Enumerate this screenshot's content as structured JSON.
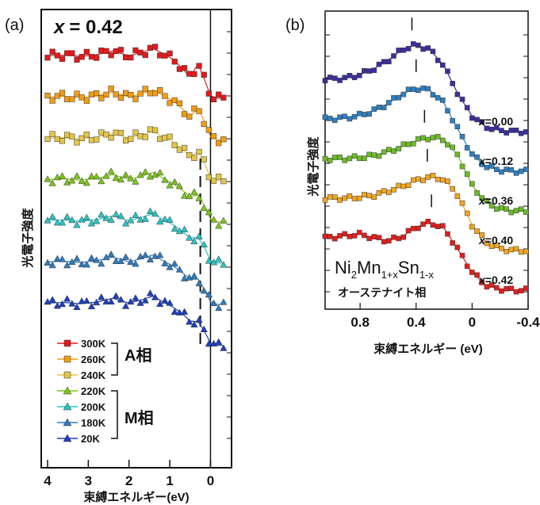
{
  "colors": {
    "300K": "#e31a1c",
    "260K": "#f39c12",
    "240K": "#e3c64a",
    "220K": "#7cc519",
    "200K": "#2bc3c3",
    "180K": "#2f7bbf",
    "20K": "#1f3fbf",
    "x000": "#3c2f9c",
    "x012": "#2f7fc0",
    "x036": "#6dbb2a",
    "x040": "#f0a622",
    "x042": "#e01f1f"
  },
  "panel_a": {
    "label": "(a)",
    "x_header_var": "x",
    "x_header_val": "= 0.42",
    "xlabel": "束縛エネルギー(eV)",
    "ylabel": "光電子強度",
    "xticks": [
      "4",
      "3",
      "2",
      "1",
      "0"
    ],
    "group_a": "A相",
    "group_m": "M相",
    "legend": [
      "300K",
      "260K",
      "240K",
      "220K",
      "200K",
      "180K",
      "20K"
    ]
  },
  "panel_b": {
    "label": "(b)",
    "xlabel": "束縛エネルギー (eV)",
    "ylabel": "光電子強度",
    "xticks": [
      "0.8",
      "0.4",
      "0",
      "-0.4"
    ],
    "formula": {
      "p1": "Ni",
      "s1": "2",
      "p2": "Mn",
      "s2": "1+x",
      "p3": "Sn",
      "s3": "1-x"
    },
    "subtitle": "オーステナイト相",
    "series_var": "x",
    "series_labels": [
      "=0.00",
      "=0.12",
      "=0.36",
      "=0.40",
      "=0.42"
    ]
  },
  "chart_data": [
    {
      "type": "line",
      "title": "x = 0.42",
      "xlabel": "束縛エネルギー(eV)",
      "ylabel": "光電子強度",
      "xlim": [
        4.0,
        -0.4
      ],
      "x_reversed": true,
      "x_tick_values": [
        4,
        3,
        2,
        1,
        0
      ],
      "marker_line_ev": 0.25,
      "x": [
        4.0,
        3.6,
        3.2,
        2.8,
        2.4,
        2.0,
        1.7,
        1.4,
        1.2,
        0.9,
        0.65,
        0.5,
        0.3,
        0.15,
        0.0,
        -0.15,
        -0.3
      ],
      "series": [
        {
          "name": "300K",
          "color": "#e31a1c",
          "marker": "square",
          "offset": 6,
          "values": [
            0.14,
            0.16,
            0.12,
            0.17,
            0.29,
            0.14,
            0.24,
            0.36,
            0.23,
            0.02,
            -0.32,
            -0.5,
            -0.12,
            -0.6,
            -1.1,
            -1.18,
            -1.18
          ]
        },
        {
          "name": "260K",
          "color": "#f39c12",
          "marker": "square",
          "offset": 5,
          "values": [
            0.14,
            0.16,
            0.12,
            0.17,
            0.29,
            0.14,
            0.24,
            0.36,
            0.21,
            0.01,
            -0.28,
            -0.46,
            -0.22,
            -0.62,
            -1.1,
            -1.18,
            -1.18
          ]
        },
        {
          "name": "240K",
          "color": "#e3c64a",
          "marker": "square",
          "offset": 4,
          "values": [
            0.14,
            0.16,
            0.12,
            0.17,
            0.29,
            0.14,
            0.24,
            0.36,
            0.2,
            0.01,
            -0.26,
            -0.43,
            -0.28,
            -0.64,
            -1.1,
            -1.18,
            -1.18
          ]
        },
        {
          "name": "220K",
          "color": "#7cc519",
          "marker": "triangle",
          "offset": 3,
          "values": [
            0.14,
            0.16,
            0.12,
            0.17,
            0.29,
            0.14,
            0.24,
            0.36,
            0.2,
            0.0,
            -0.24,
            -0.4,
            -0.34,
            -0.68,
            -1.1,
            -1.18,
            -1.18
          ]
        },
        {
          "name": "200K",
          "color": "#2bc3c3",
          "marker": "triangle",
          "offset": 2,
          "values": [
            0.14,
            0.16,
            0.12,
            0.17,
            0.29,
            0.14,
            0.24,
            0.36,
            0.2,
            0.0,
            -0.24,
            -0.4,
            -0.38,
            -0.7,
            -1.1,
            -1.18,
            -1.18
          ]
        },
        {
          "name": "180K",
          "color": "#2f7bbf",
          "marker": "triangle",
          "offset": 1,
          "values": [
            0.14,
            0.16,
            0.12,
            0.17,
            0.29,
            0.14,
            0.24,
            0.36,
            0.2,
            0.0,
            -0.24,
            -0.4,
            -0.4,
            -0.72,
            -1.1,
            -1.18,
            -1.18
          ]
        },
        {
          "name": "20K",
          "color": "#1f3fbf",
          "marker": "triangle",
          "offset": 0,
          "values": [
            0.14,
            0.16,
            0.12,
            0.17,
            0.29,
            0.14,
            0.24,
            0.36,
            0.2,
            0.0,
            -0.24,
            -0.42,
            -0.44,
            -0.74,
            -1.1,
            -1.18,
            -1.18
          ]
        }
      ],
      "legend_groups": [
        {
          "label": "A相",
          "members": [
            "300K",
            "260K",
            "240K"
          ]
        },
        {
          "label": "M相",
          "members": [
            "220K",
            "200K",
            "180K",
            "20K"
          ]
        }
      ],
      "legend_placement": "bottom-left"
    },
    {
      "type": "line",
      "xlabel": "束縛エネルギー (eV)",
      "ylabel": "光電子強度",
      "xlim": [
        1.05,
        -0.4
      ],
      "x_reversed": true,
      "x_tick_values": [
        0.8,
        0.4,
        0,
        -0.4
      ],
      "x": [
        1.05,
        0.9,
        0.8,
        0.7,
        0.6,
        0.5,
        0.4,
        0.3,
        0.2,
        0.1,
        0.0,
        -0.1,
        -0.2,
        -0.3,
        -0.4
      ],
      "series": [
        {
          "name": "x=0.00",
          "color": "#3c2f9c",
          "marker": "square",
          "offset": 4,
          "values": [
            0.0,
            0.02,
            0.08,
            0.18,
            0.32,
            0.5,
            0.58,
            0.5,
            0.22,
            -0.25,
            -0.62,
            -0.8,
            -0.86,
            -0.88,
            -0.88
          ],
          "tick_ev": 0.43
        },
        {
          "name": "x=0.12",
          "color": "#2f7fc0",
          "marker": "square",
          "offset": 3,
          "values": [
            0.0,
            0.02,
            0.06,
            0.14,
            0.26,
            0.42,
            0.52,
            0.48,
            0.26,
            -0.18,
            -0.6,
            -0.8,
            -0.86,
            -0.88,
            -0.88
          ],
          "tick_ev": 0.4
        },
        {
          "name": "x=0.36",
          "color": "#6dbb2a",
          "marker": "square",
          "offset": 2,
          "values": [
            0.0,
            0.0,
            0.02,
            0.05,
            0.12,
            0.2,
            0.3,
            0.36,
            0.32,
            0.05,
            -0.45,
            -0.74,
            -0.85,
            -0.88,
            -0.88
          ],
          "tick_ev": 0.34
        },
        {
          "name": "x=0.40",
          "color": "#f0a622",
          "marker": "square",
          "offset": 1,
          "values": [
            0.0,
            0.0,
            0.02,
            0.05,
            0.12,
            0.2,
            0.3,
            0.36,
            0.32,
            0.05,
            -0.45,
            -0.74,
            -0.85,
            -0.88,
            -0.88
          ],
          "tick_ev": 0.32
        },
        {
          "name": "x=0.42",
          "color": "#e01f1f",
          "marker": "square",
          "offset": 0,
          "values": [
            0.0,
            0.04,
            0.06,
            0.0,
            -0.05,
            0.02,
            0.18,
            0.26,
            0.16,
            -0.2,
            -0.58,
            -0.8,
            -0.86,
            -0.88,
            -0.88
          ],
          "tick_ev": 0.29
        }
      ]
    }
  ]
}
